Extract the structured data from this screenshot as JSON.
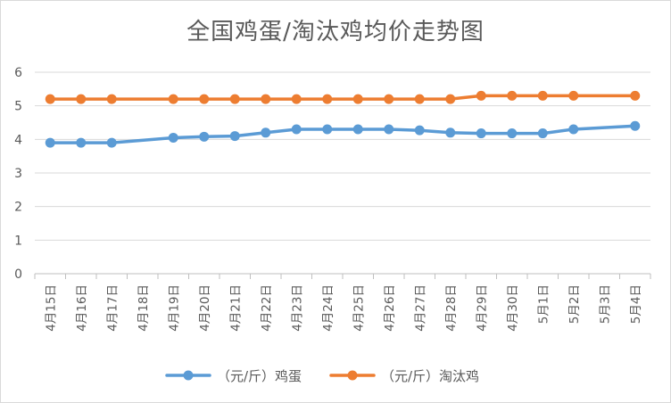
{
  "chart_data": {
    "type": "line",
    "title": "全国鸡蛋/淘汰鸡均价走势图",
    "xlabel": "",
    "ylabel": "",
    "ylim": [
      0,
      6
    ],
    "yticks": [
      0,
      1,
      2,
      3,
      4,
      5,
      6
    ],
    "grid": "horizontal",
    "legend": "bottom",
    "categories": [
      "4月15日",
      "4月16日",
      "4月17日",
      "4月18日",
      "4月19日",
      "4月20日",
      "4月21日",
      "4月22日",
      "4月23日",
      "4月24日",
      "4月25日",
      "4月26日",
      "4月27日",
      "4月28日",
      "4月29日",
      "4月30日",
      "5月1日",
      "5月2日",
      "5月3日",
      "5月4日"
    ],
    "series": [
      {
        "name": "（元/斤）鸡蛋",
        "color": "#5b9bd5",
        "values": [
          3.9,
          3.9,
          3.9,
          null,
          4.05,
          4.08,
          4.1,
          4.2,
          4.3,
          4.3,
          4.3,
          4.3,
          4.27,
          4.2,
          4.18,
          4.18,
          4.18,
          4.3,
          null,
          4.4
        ]
      },
      {
        "name": "（元/斤）淘汰鸡",
        "color": "#ed7d31",
        "values": [
          5.2,
          5.2,
          5.2,
          null,
          5.2,
          5.2,
          5.2,
          5.2,
          5.2,
          5.2,
          5.2,
          5.2,
          5.2,
          5.2,
          5.3,
          5.3,
          5.3,
          5.3,
          null,
          5.3
        ]
      }
    ]
  }
}
